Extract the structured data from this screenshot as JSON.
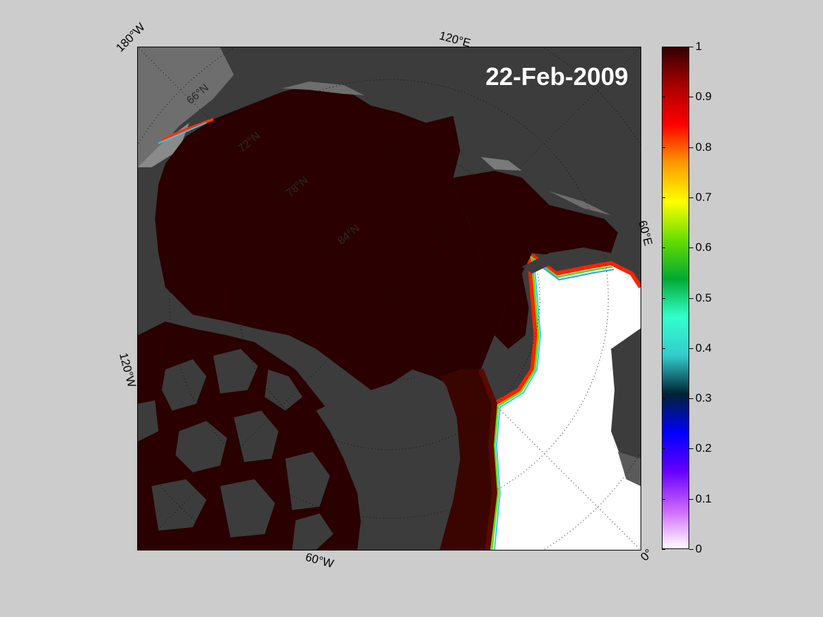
{
  "date": "22-Feb-2009",
  "longitude_labels": {
    "lon_180w": "180°W",
    "lon_120e": "120°E",
    "lon_60e": "60°E",
    "lon_120w": "120°W",
    "lon_60w": "60°W",
    "lon_0": "0°"
  },
  "latitude_labels": [
    "66°N",
    "72°N",
    "78°N",
    "84°N"
  ],
  "colorbar": {
    "min": 0,
    "max": 1,
    "ticks": [
      "0",
      "0.1",
      "0.2",
      "0.3",
      "0.4",
      "0.5",
      "0.6",
      "0.7",
      "0.8",
      "0.9",
      "1"
    ],
    "colors": [
      "#ffffff",
      "#cc66ff",
      "#6600ff",
      "#0000ff",
      "#002233",
      "#33cccc",
      "#33ffcc",
      "#00aa33",
      "#66dd00",
      "#ffff00",
      "#ff9900",
      "#ff0000",
      "#aa0000",
      "#330000"
    ]
  },
  "legend": {
    "land_color": "#3c3c3c",
    "open_water_color": "#ffffff",
    "ice_color": "#2a0000"
  }
}
